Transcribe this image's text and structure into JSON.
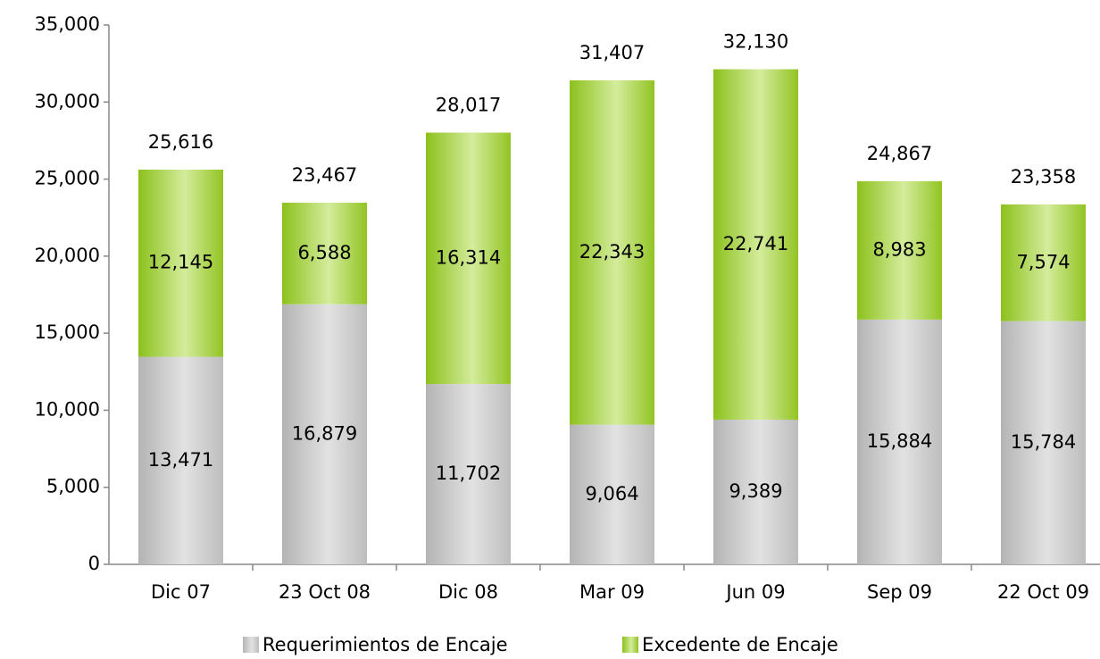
{
  "chart_data": {
    "type": "stacked_bar",
    "categories": [
      "Dic 07",
      "23 Oct 08",
      "Dic 08",
      "Mar 09",
      "Jun 09",
      "Sep 09",
      "22 Oct 09"
    ],
    "series": [
      {
        "name": "Requerimientos de Encaje",
        "color": "#c8c8c8",
        "values": [
          13471,
          16879,
          11702,
          9064,
          9389,
          15884,
          15784
        ],
        "value_labels": [
          "13,471",
          "16,879",
          "11,702",
          "9,064",
          "9,389",
          "15,884",
          "15,784"
        ]
      },
      {
        "name": "Excedente de Encaje",
        "color": "#9acd32",
        "values": [
          12145,
          6588,
          16314,
          22343,
          22741,
          8983,
          7574
        ],
        "value_labels": [
          "12,145",
          "6,588",
          "16,314",
          "22,343",
          "22,741",
          "8,983",
          "7,574"
        ]
      }
    ],
    "totals": {
      "values": [
        25616,
        23467,
        28017,
        31407,
        32130,
        24867,
        23358
      ],
      "value_labels": [
        "25,616",
        "23,467",
        "28,017",
        "31,407",
        "32,130",
        "24,867",
        "23,358"
      ]
    },
    "ylim": [
      0,
      35000
    ],
    "yticks": [
      0,
      {
        "value": 5000,
        "label": "5,000"
      },
      {
        "value": 10000,
        "label": "10,000"
      },
      {
        "value": 15000,
        "label": "15,000"
      },
      {
        "value": 20000,
        "label": "20,000"
      },
      {
        "value": 25000,
        "label": "25,000"
      },
      {
        "value": 30000,
        "label": "30,000"
      },
      {
        "value": 35000,
        "label": "35,000"
      }
    ],
    "legend": "bottom"
  }
}
